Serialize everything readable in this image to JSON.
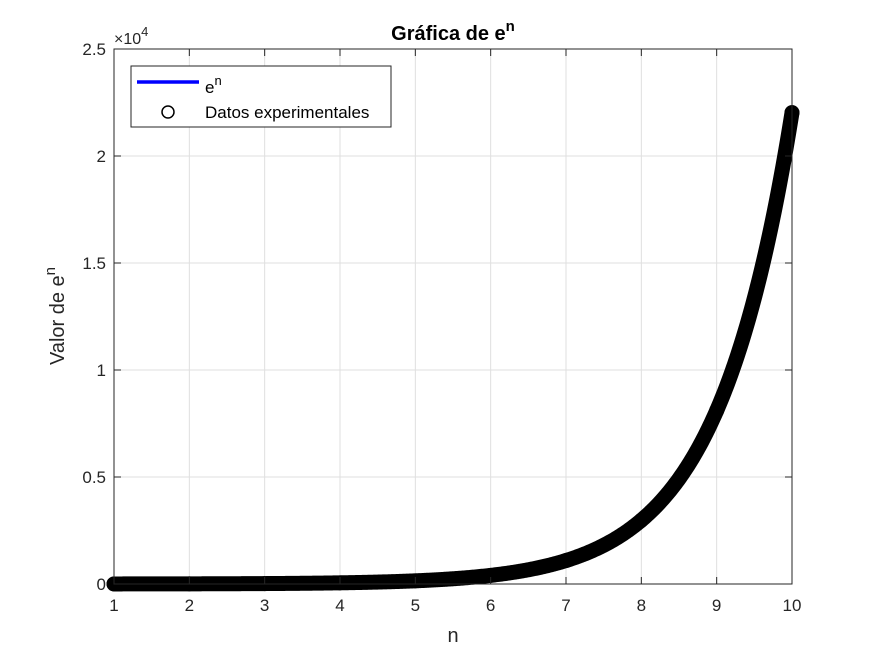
{
  "chart_data": {
    "type": "line",
    "title": "Gráfica de e",
    "title_superscript": "n",
    "xlabel": "n",
    "ylabel": "Valor de e",
    "ylabel_superscript": "n",
    "y_exponent_base": "×10",
    "y_exponent_power": "4",
    "xlim": [
      1,
      10
    ],
    "ylim": [
      0,
      25000
    ],
    "x_ticks": [
      "1",
      "2",
      "3",
      "4",
      "5",
      "6",
      "7",
      "8",
      "9",
      "10"
    ],
    "y_ticks": [
      "0",
      "0.5",
      "1",
      "1.5",
      "2",
      "2.5"
    ],
    "y_tick_values": [
      0,
      5000,
      10000,
      15000,
      20000,
      25000
    ],
    "grid": true,
    "legend_position": "top-left",
    "series": [
      {
        "name": "e",
        "name_superscript": "n",
        "kind": "line",
        "color": "#0000ff",
        "x": [
          1,
          2,
          3,
          4,
          5,
          6,
          7,
          8,
          9,
          10
        ],
        "values": [
          2.718,
          7.389,
          20.09,
          54.6,
          148.4,
          403.4,
          1096.6,
          2981.0,
          8103.1,
          22026.5
        ]
      },
      {
        "name": "Datos experimentales",
        "kind": "markers",
        "color": "#000000",
        "marker": "circle",
        "x": [
          1,
          2,
          3,
          4,
          5,
          6,
          7,
          8,
          9,
          10
        ],
        "values": [
          2.718,
          7.389,
          20.09,
          54.6,
          148.4,
          403.4,
          1096.6,
          2981.0,
          8103.1,
          22026.5
        ]
      }
    ]
  }
}
